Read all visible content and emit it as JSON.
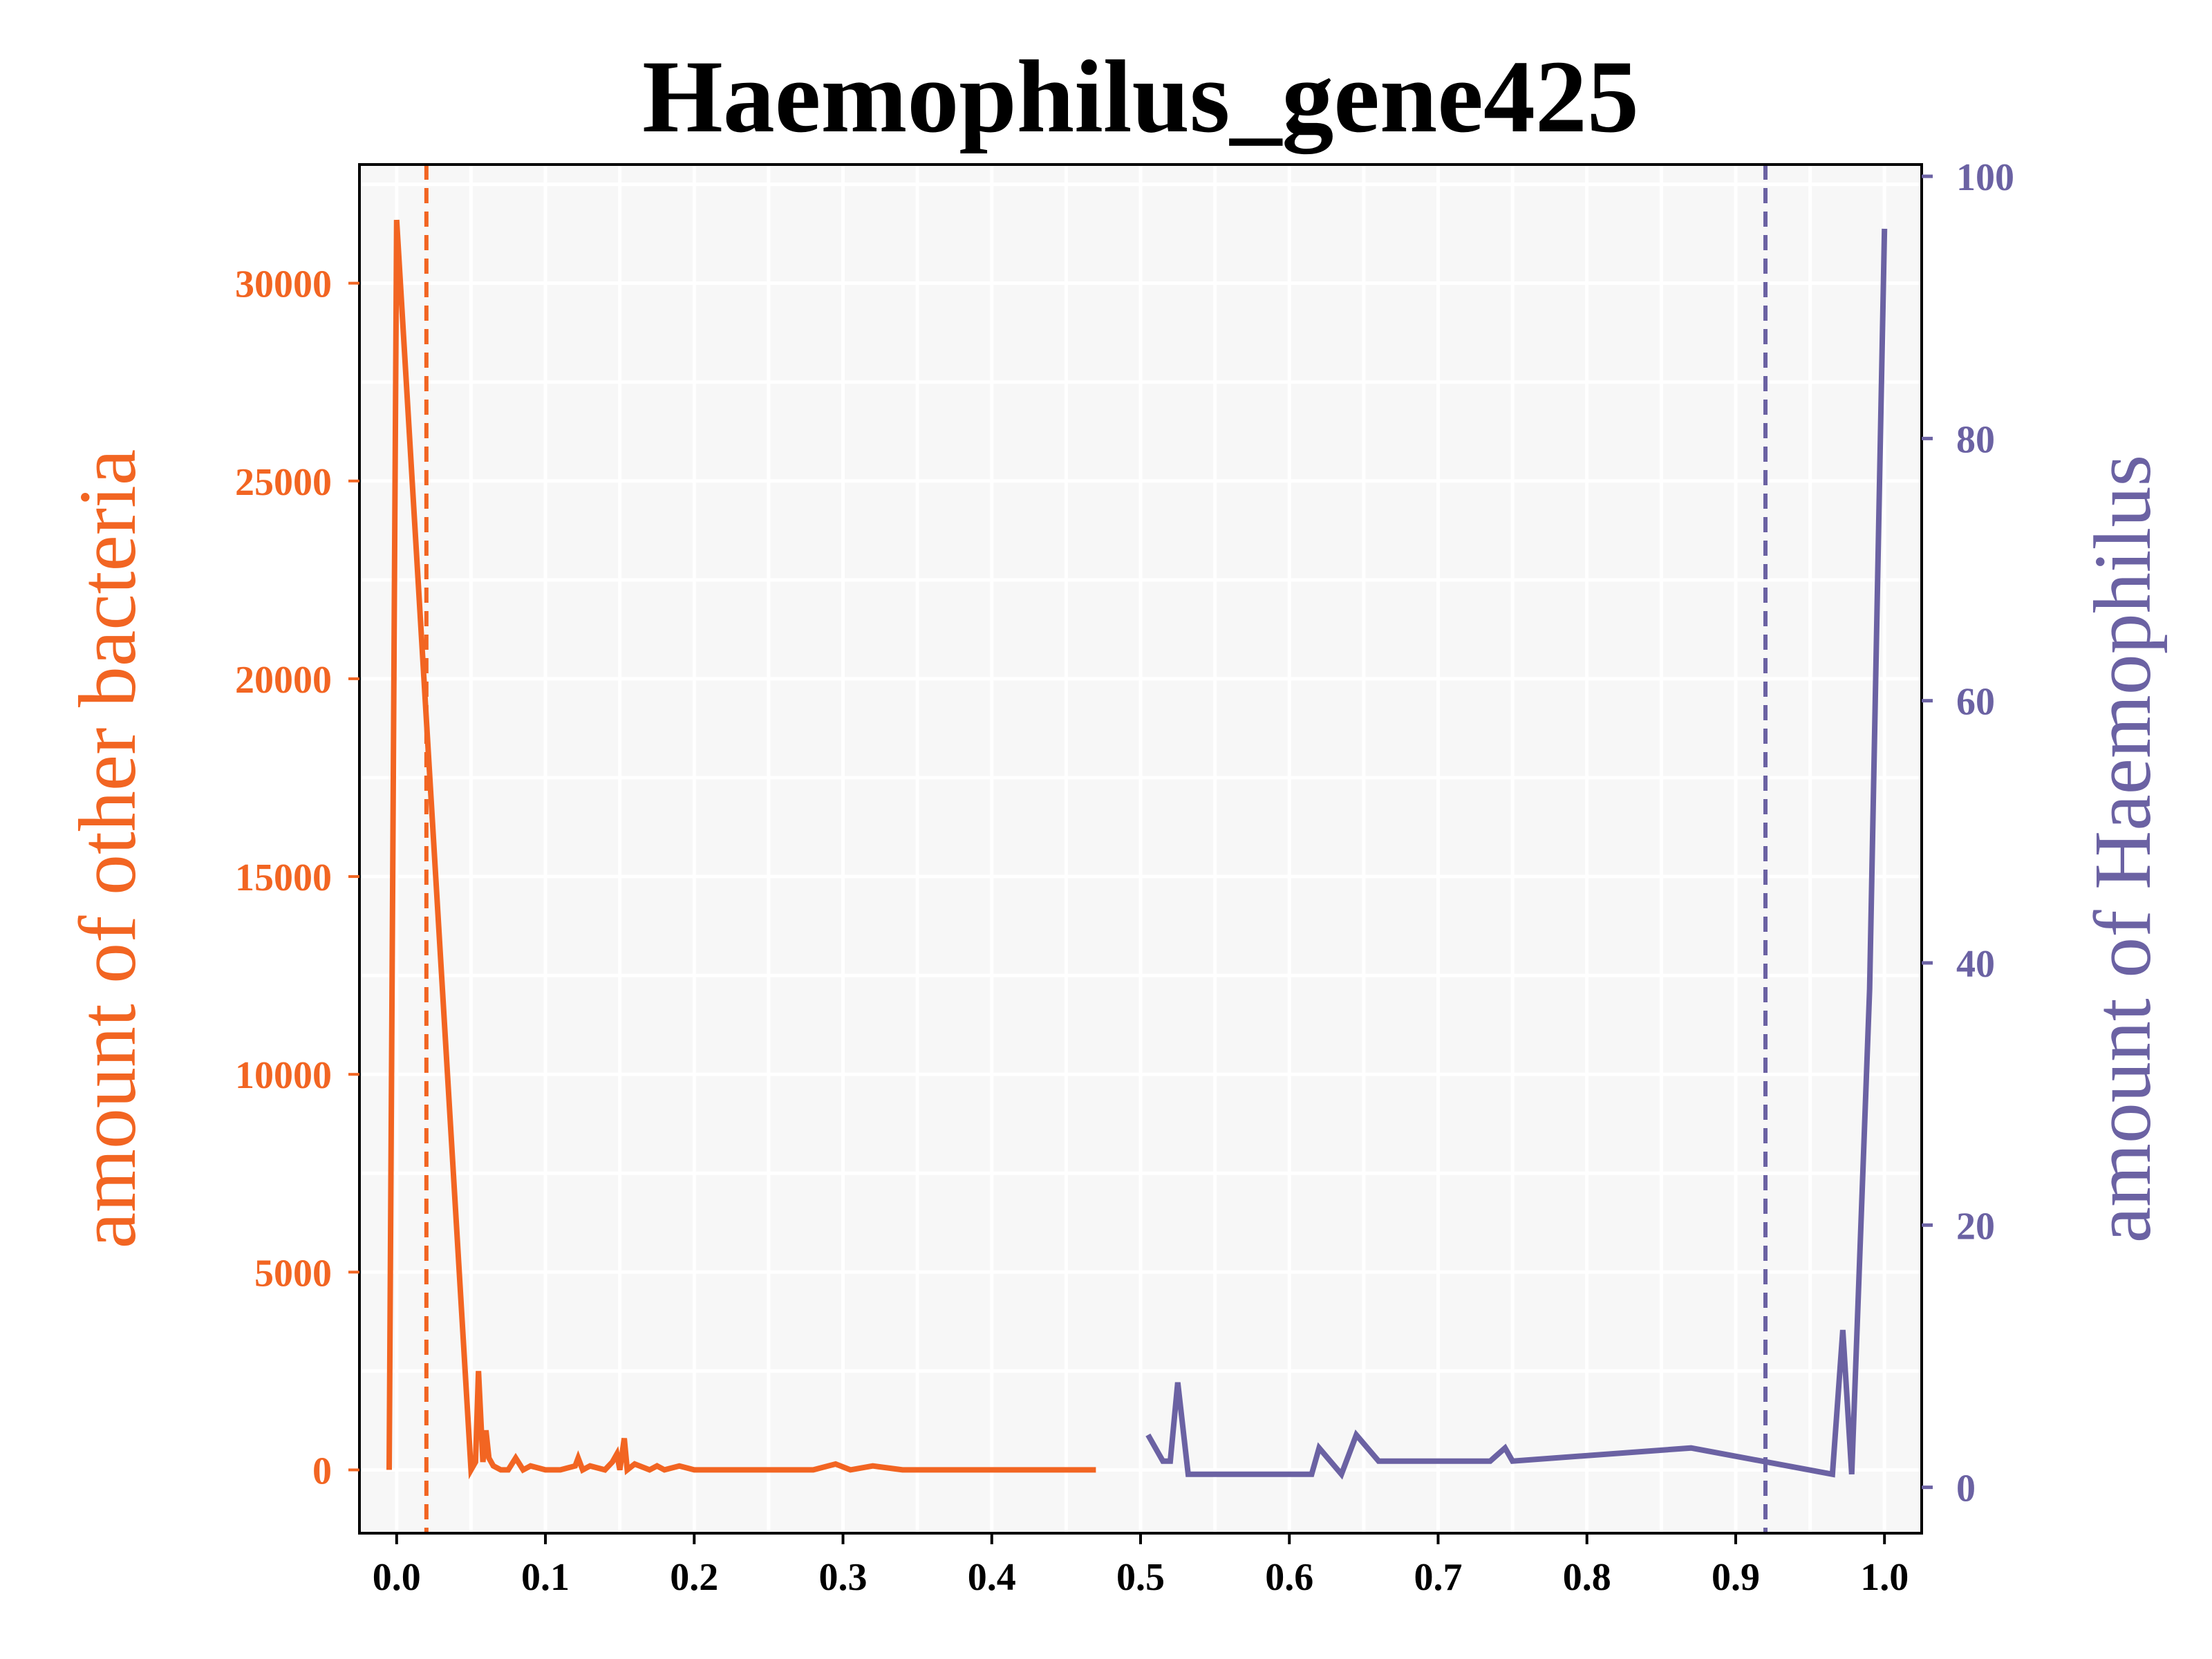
{
  "chart_data": {
    "type": "line",
    "title": "Haemophilus_gene425",
    "xlim": [
      -0.025,
      1.025
    ],
    "x_ticks": [
      "0.0",
      "0.1",
      "0.2",
      "0.3",
      "0.4",
      "0.5",
      "0.6",
      "0.7",
      "0.8",
      "0.9",
      "1.0"
    ],
    "x_tick_values": [
      0.0,
      0.1,
      0.2,
      0.3,
      0.4,
      0.5,
      0.6,
      0.7,
      0.8,
      0.9,
      1.0
    ],
    "grid": true,
    "background": "#f7f7f7",
    "left_axis": {
      "label": "amount of other bacteria",
      "color": "#f26522",
      "ylim": [
        -1600,
        33000
      ],
      "ticks": [
        "0",
        "5000",
        "10000",
        "15000",
        "20000",
        "25000",
        "30000"
      ],
      "tick_values": [
        0,
        5000,
        10000,
        15000,
        20000,
        25000,
        30000
      ]
    },
    "right_axis": {
      "label": "amount of Haemophilus",
      "color": "#6b62a3",
      "ylim": [
        -3.5,
        100.9
      ],
      "ticks": [
        "0",
        "20",
        "40",
        "60",
        "80",
        "100"
      ],
      "tick_values": [
        0,
        20,
        40,
        60,
        80,
        100
      ]
    },
    "series": [
      {
        "axis": "left",
        "color": "#f26522",
        "x": [
          -0.005,
          0.0,
          0.05,
          0.053,
          0.055,
          0.058,
          0.06,
          0.062,
          0.065,
          0.07,
          0.075,
          0.08,
          0.085,
          0.09,
          0.1,
          0.11,
          0.12,
          0.122,
          0.125,
          0.13,
          0.14,
          0.145,
          0.148,
          0.15,
          0.153,
          0.155,
          0.16,
          0.17,
          0.175,
          0.18,
          0.19,
          0.2,
          0.25,
          0.28,
          0.295,
          0.305,
          0.32,
          0.34,
          0.4,
          0.47
        ],
        "y": [
          0,
          31600,
          0,
          200,
          2500,
          200,
          1000,
          300,
          100,
          0,
          0,
          300,
          0,
          100,
          0,
          0,
          100,
          300,
          0,
          100,
          0,
          200,
          400,
          0,
          800,
          0,
          150,
          0,
          100,
          0,
          100,
          0,
          0,
          0,
          150,
          0,
          100,
          0,
          0,
          0
        ]
      },
      {
        "axis": "right",
        "color": "#6b62a3",
        "x": [
          0.505,
          0.515,
          0.52,
          0.525,
          0.532,
          0.54,
          0.6,
          0.615,
          0.62,
          0.635,
          0.645,
          0.66,
          0.735,
          0.745,
          0.75,
          0.87,
          0.965,
          0.972,
          0.978,
          0.99,
          1.0
        ],
        "y": [
          4,
          2,
          2,
          8,
          1,
          1,
          1,
          1,
          3,
          1,
          4,
          2,
          2,
          3,
          2,
          3,
          1,
          12,
          1,
          38,
          96
        ]
      }
    ],
    "vlines": [
      {
        "x": 0.02,
        "color": "#f26522",
        "style": "dashed"
      },
      {
        "x": 0.92,
        "color": "#6b62a3",
        "style": "dashed"
      }
    ]
  }
}
